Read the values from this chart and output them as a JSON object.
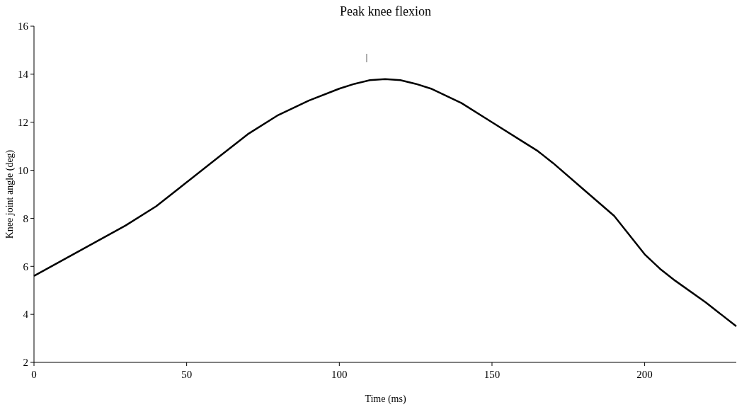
{
  "chart_data": {
    "type": "line",
    "title": "Peak knee flexion",
    "xlabel": "Time (ms)",
    "ylabel": "Knee joint angle (deg)",
    "xlim": [
      0,
      230
    ],
    "xticks": [
      0,
      50,
      100,
      150,
      200
    ],
    "ylim": [
      2,
      16
    ],
    "yticks": [
      2,
      4,
      6,
      8,
      10,
      12,
      14,
      16
    ],
    "grid": false,
    "marker": "none",
    "line_style": "solid",
    "annotations": [
      "|"
    ],
    "series": [
      {
        "color": "#000000",
        "x": [
          0,
          10,
          20,
          30,
          40,
          50,
          60,
          70,
          80,
          90,
          100,
          105,
          110,
          115,
          120,
          125,
          130,
          135,
          140,
          150,
          160,
          165,
          170,
          180,
          190,
          200,
          205,
          210,
          220,
          230
        ],
        "values": [
          5.6,
          6.3,
          7.0,
          7.7,
          8.5,
          9.5,
          10.5,
          11.5,
          12.3,
          12.9,
          13.4,
          13.6,
          13.75,
          13.8,
          13.75,
          13.6,
          13.4,
          13.1,
          12.8,
          12.0,
          11.2,
          10.8,
          10.3,
          9.2,
          8.1,
          6.5,
          5.9,
          5.4,
          4.5,
          3.5
        ]
      }
    ]
  }
}
